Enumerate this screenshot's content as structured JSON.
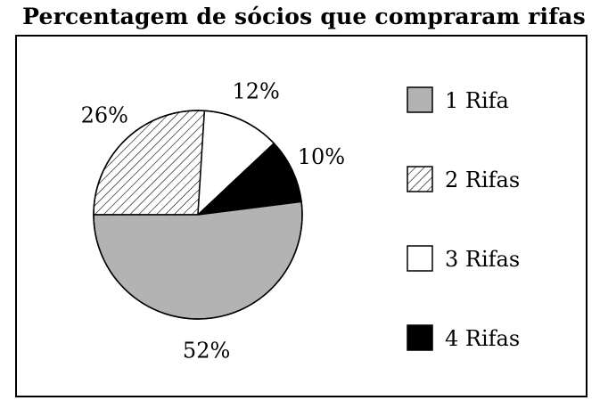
{
  "chart_data": {
    "type": "pie",
    "title": "Percentagem de sócios que compraram rifas",
    "legend_position": "right",
    "slices": [
      {
        "label": "1 Rifa",
        "value": 52,
        "value_label": "52%",
        "fill": "#b3b3b3",
        "pattern": "solid"
      },
      {
        "label": "2 Rifas",
        "value": 26,
        "value_label": "26%",
        "fill": "#ffffff",
        "pattern": "hatched"
      },
      {
        "label": "3 Rifas",
        "value": 12,
        "value_label": "12%",
        "fill": "#ffffff",
        "pattern": "solid"
      },
      {
        "label": "4 Rifas",
        "value": 10,
        "value_label": "10%",
        "fill": "#000000",
        "pattern": "solid"
      }
    ]
  }
}
